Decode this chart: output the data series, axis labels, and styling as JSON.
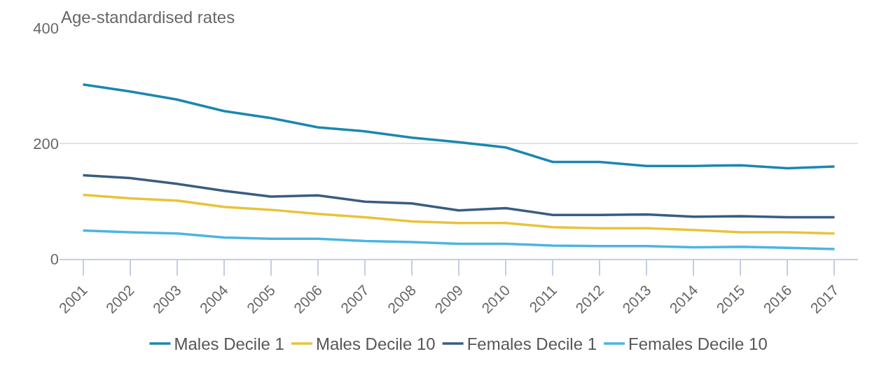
{
  "chart_data": {
    "type": "line",
    "ylabel": "Age-standardised rates",
    "categories": [
      "2001",
      "2002",
      "2003",
      "2004",
      "2005",
      "2006",
      "2007",
      "2008",
      "2009",
      "2010",
      "2011",
      "2012",
      "2013",
      "2014",
      "2015",
      "2016",
      "2017"
    ],
    "series": [
      {
        "name": "Males Decile 1",
        "color": "#1b87b0",
        "values": [
          302,
          290,
          276,
          256,
          244,
          228,
          221,
          210,
          202,
          193,
          168,
          168,
          161,
          161,
          162,
          157,
          160
        ]
      },
      {
        "name": "Males Decile 10",
        "color": "#e8c33b",
        "values": [
          111,
          105,
          101,
          90,
          85,
          78,
          72,
          65,
          62,
          62,
          55,
          53,
          53,
          50,
          46,
          46,
          44
        ]
      },
      {
        "name": "Females Decile 1",
        "color": "#385d80",
        "values": [
          145,
          140,
          130,
          118,
          108,
          110,
          99,
          96,
          84,
          88,
          76,
          76,
          77,
          73,
          74,
          72,
          72
        ]
      },
      {
        "name": "Females Decile 10",
        "color": "#4cb5e0",
        "values": [
          49,
          46,
          44,
          37,
          35,
          35,
          31,
          29,
          26,
          26,
          23,
          22,
          22,
          20,
          21,
          19,
          17
        ]
      }
    ],
    "ylim": [
      0,
      400
    ],
    "yticks": [
      0,
      200,
      400
    ],
    "grid": "y",
    "legend": "bottom",
    "marker": "none",
    "line_style": "solid"
  }
}
